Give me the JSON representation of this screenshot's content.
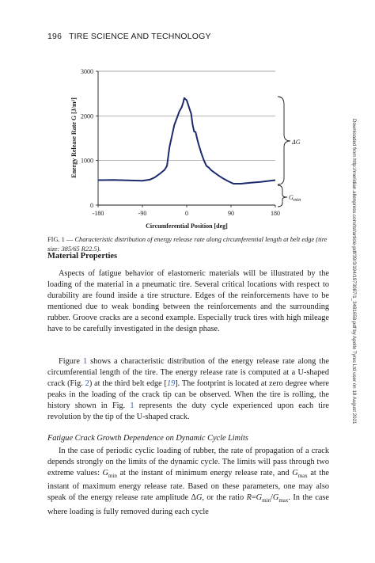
{
  "header": {
    "page_number": "196",
    "journal": "TIRE SCIENCE AND TECHNOLOGY"
  },
  "side_note": "Downloaded from http://meridian.allenpress.com/tst/article-pdf/39/3/194/1973087/1_3481658.pdf by Apollo Tyres Ltd user on 18 August 2021",
  "figure": {
    "caption_label": "FIG. 1 —",
    "caption_text": "Characteristic distribution of energy release rate along circumferential length at belt edge (tire size: 385/65 R22.5)."
  },
  "chart_data": {
    "type": "line",
    "xlabel": "Circumferential Position [deg]",
    "ylabel": "Energy Release Rate G [J/m²]",
    "xlim": [
      -180,
      180
    ],
    "ylim": [
      0,
      3000
    ],
    "x_ticks": [
      "-180",
      "-90",
      "0",
      "90",
      "180"
    ],
    "y_ticks": [
      "0",
      "1000",
      "2000",
      "3000"
    ],
    "grid_y": true,
    "line_color": "#1c2a6e",
    "series": [
      {
        "x": [
          -180,
          -150,
          -120,
          -90,
          -75,
          -65,
          -55,
          -45,
          -40,
          -35,
          -30,
          -25,
          -20,
          -15,
          -10,
          -7,
          -5,
          -3,
          0,
          3,
          6,
          9,
          12,
          15,
          18,
          22,
          25,
          30,
          35,
          40,
          45,
          50,
          55,
          65,
          75,
          85,
          95,
          110,
          130,
          150,
          170,
          180
        ],
        "y": [
          560,
          565,
          555,
          545,
          570,
          620,
          700,
          790,
          880,
          1300,
          1550,
          1800,
          1950,
          2100,
          2200,
          2300,
          2400,
          2380,
          2350,
          2250,
          2150,
          2050,
          1800,
          1650,
          1640,
          1450,
          1330,
          1150,
          1000,
          880,
          840,
          780,
          740,
          660,
          590,
          530,
          480,
          480,
          500,
          520,
          545,
          560
        ]
      }
    ],
    "annotations": [
      "ΔG",
      "G_min"
    ]
  },
  "sections": {
    "material_properties": "Material Properties",
    "fatigue_heading": "Fatigue Crack Growth Dependence on Dynamic Cycle Limits"
  },
  "paragraphs": {
    "p1": "Aspects of fatigue behavior of elastomeric materials will be illustrated by the loading of the material in a pneumatic tire. Several critical locations with respect to durability are found inside a tire structure. Edges of the reinforcements have to be mentioned due to weak bonding between the reinforcements and the surrounding rubber. Groove cracks are a second example. Especially truck tires with high mileage have to be carefully investigated in the design phase.",
    "p2_a": "Figure ",
    "p2_ref1": "1",
    "p2_b": " shows a characteristic distribution of the energy release rate along the circumferential length of the tire. The energy release rate is computed at a U-shaped crack (Fig. ",
    "p2_ref2": "2",
    "p2_c": ") at the third belt edge [",
    "p2_ref3": "19",
    "p2_d": "]. The footprint is located at zero degree where peaks in the loading of the crack tip can be observed. When the tire is rolling, the history shown in Fig. ",
    "p2_ref4": "1",
    "p2_e": " represents the duty cycle experienced upon each tire revolution by the tip of the U-shaped crack.",
    "p3_a": "In the case of periodic cyclic loading of rubber, the rate of propagation of a crack depends strongly on the limits of the dynamic cycle. The limits will pass through two extreme values: ",
    "p3_gmin": "G",
    "p3_gmin_sub": "min",
    "p3_b": " at the instant of minimum energy release rate, and ",
    "p3_gmax": "G",
    "p3_gmax_sub": "max",
    "p3_c": " at the instant of maximum energy release rate. Based on these parameters, one may also speak of the energy release rate amplitude Δ",
    "p3_dg": "G",
    "p3_d": ", or the ratio ",
    "p3_r": "R",
    "p3_e": "=",
    "p3_g1": "G",
    "p3_g1_sub": "min",
    "p3_f": "/",
    "p3_g2": "G",
    "p3_g2_sub": "max",
    "p3_g": ". In the case where loading is fully removed during each cycle"
  }
}
